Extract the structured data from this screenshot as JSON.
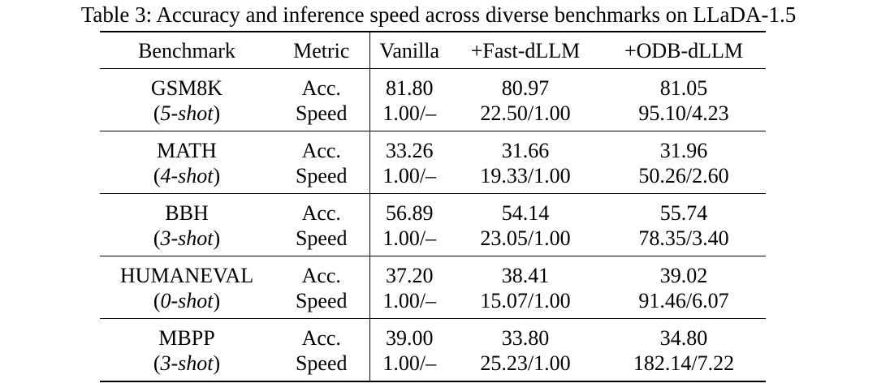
{
  "caption": "Table 3: Accuracy and inference speed across diverse benchmarks on LLaDA-1.5",
  "columns": [
    "Benchmark",
    "Metric",
    "Vanilla",
    "+Fast-dLLM",
    "+ODB-dLLM"
  ],
  "rows": [
    {
      "benchmark": "GSM8K",
      "shot": "5-shot",
      "acc": {
        "metric": "Acc.",
        "vanilla": "81.80",
        "fast": "80.97",
        "odb": "81.05"
      },
      "speed": {
        "metric": "Speed",
        "vanilla": "1.00/–",
        "fast": "22.50/1.00",
        "odb": "95.10/4.23"
      }
    },
    {
      "benchmark": "MATH",
      "shot": "4-shot",
      "acc": {
        "metric": "Acc.",
        "vanilla": "33.26",
        "fast": "31.66",
        "odb": "31.96"
      },
      "speed": {
        "metric": "Speed",
        "vanilla": "1.00/–",
        "fast": "19.33/1.00",
        "odb": "50.26/2.60"
      }
    },
    {
      "benchmark": "BBH",
      "shot": "3-shot",
      "acc": {
        "metric": "Acc.",
        "vanilla": "56.89",
        "fast": "54.14",
        "odb": "55.74"
      },
      "speed": {
        "metric": "Speed",
        "vanilla": "1.00/–",
        "fast": "23.05/1.00",
        "odb": "78.35/3.40"
      }
    },
    {
      "benchmark": "HUMANEVAL",
      "shot": "0-shot",
      "acc": {
        "metric": "Acc.",
        "vanilla": "37.20",
        "fast": "38.41",
        "odb": "39.02"
      },
      "speed": {
        "metric": "Speed",
        "vanilla": "1.00/–",
        "fast": "15.07/1.00",
        "odb": "91.46/6.07"
      }
    },
    {
      "benchmark": "MBPP",
      "shot": "3-shot",
      "acc": {
        "metric": "Acc.",
        "vanilla": "39.00",
        "fast": "33.80",
        "odb": "34.80"
      },
      "speed": {
        "metric": "Speed",
        "vanilla": "1.00/–",
        "fast": "25.23/1.00",
        "odb": "182.14/7.22"
      }
    }
  ]
}
